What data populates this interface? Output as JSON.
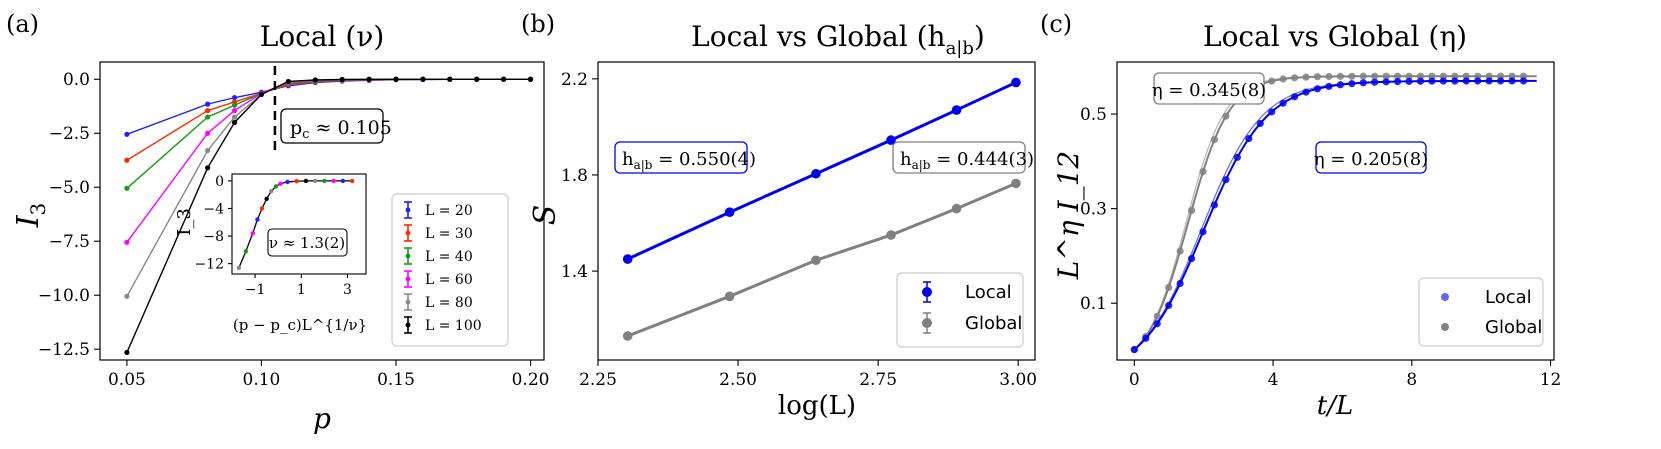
{
  "chart_data": [
    {
      "panel": "(a)",
      "type": "line",
      "title": "Local (ν)",
      "xlabel": "p",
      "ylabel": "I",
      "ylabel_sub": "3",
      "xlim": [
        0.04,
        0.205
      ],
      "ylim": [
        -13.0,
        0.8
      ],
      "xticks": [
        0.05,
        0.1,
        0.15,
        0.2
      ],
      "xtick_labels": [
        "0.05",
        "0.10",
        "0.15",
        "0.20"
      ],
      "yticks": [
        0.0,
        -2.5,
        -5.0,
        -7.5,
        -10.0,
        -12.5
      ],
      "ytick_labels": [
        "0.0",
        "−2.5",
        "−5.0",
        "−7.5",
        "−10.0",
        "−12.5"
      ],
      "critical_x": 0.105,
      "annotation": "p_c ≈ 0.105",
      "annotation_main": "p",
      "annotation_sub": "c",
      "annotation_rest": " ≈ 0.105",
      "x": [
        0.05,
        0.08,
        0.09,
        0.1,
        0.11,
        0.12,
        0.13,
        0.14,
        0.15,
        0.16,
        0.17,
        0.18,
        0.19,
        0.2
      ],
      "series": [
        {
          "name": "L = 20",
          "color": "#1f1fff",
          "values": [
            -2.55,
            -1.15,
            -0.85,
            -0.6,
            -0.3,
            -0.15,
            -0.08,
            -0.05,
            -0.02,
            -0.01,
            0,
            0,
            0,
            0
          ]
        },
        {
          "name": "L = 30",
          "color": "#ff2a00",
          "values": [
            -3.75,
            -1.45,
            -1.05,
            -0.65,
            -0.25,
            -0.12,
            -0.06,
            -0.03,
            -0.01,
            0,
            0,
            0,
            0,
            0
          ]
        },
        {
          "name": "L = 40",
          "color": "#1a9a1a",
          "values": [
            -5.05,
            -1.75,
            -1.2,
            -0.65,
            -0.2,
            -0.1,
            -0.05,
            -0.02,
            -0.01,
            0,
            0,
            0,
            0,
            0
          ]
        },
        {
          "name": "L = 60",
          "color": "#ff00ff",
          "values": [
            -7.55,
            -2.5,
            -1.45,
            -0.65,
            -0.15,
            -0.06,
            -0.03,
            -0.01,
            0,
            0,
            0,
            0,
            0,
            0
          ]
        },
        {
          "name": "L = 80",
          "color": "#888888",
          "values": [
            -10.05,
            -3.3,
            -1.75,
            -0.7,
            -0.12,
            -0.04,
            -0.02,
            0,
            0,
            0,
            0,
            0,
            0,
            0
          ]
        },
        {
          "name": "L = 100",
          "color": "#000000",
          "values": [
            -12.65,
            -4.1,
            -2.0,
            -0.7,
            -0.1,
            -0.03,
            -0.01,
            0,
            0,
            0,
            0,
            0,
            0,
            0
          ]
        }
      ],
      "inset": {
        "type": "scatter",
        "xlabel": "(p − p_c)L^{1/ν}",
        "ylabel": "I_3",
        "xlim": [
          -2.0,
          3.8
        ],
        "ylim": [
          -13.5,
          1.0
        ],
        "xticks": [
          -1,
          1,
          3
        ],
        "xtick_labels": [
          "−1",
          "1",
          "3"
        ],
        "yticks": [
          0,
          -4,
          -8,
          -12
        ],
        "ytick_labels": [
          "0",
          "−4",
          "−8",
          "−12"
        ],
        "annotation": "ν ≈ 1.3(2)",
        "x": [
          -1.7,
          -1.4,
          -1.1,
          -0.9,
          -0.7,
          -0.5,
          -0.3,
          -0.1,
          0.1,
          0.4,
          0.8,
          1.2,
          1.6,
          2.0,
          2.4,
          2.8,
          3.2
        ],
        "y": [
          -12.6,
          -10.2,
          -7.6,
          -5.6,
          -4.0,
          -2.6,
          -1.5,
          -0.8,
          -0.4,
          -0.15,
          -0.05,
          0,
          0,
          0,
          0,
          0,
          0
        ]
      },
      "legend_position": "lower-right"
    },
    {
      "panel": "(b)",
      "type": "line",
      "title": "Local vs Global (h_{a|b})",
      "title_main": "Local vs Global (h",
      "title_sub": "a|b",
      "title_end": ")",
      "xlabel": "log(L)",
      "ylabel": "S",
      "xlim": [
        2.25,
        3.03
      ],
      "ylim": [
        1.03,
        2.27
      ],
      "xticks": [
        2.25,
        2.5,
        2.75,
        3.0
      ],
      "xtick_labels": [
        "2.25",
        "2.50",
        "2.75",
        "3.00"
      ],
      "yticks": [
        1.4,
        1.8,
        2.2
      ],
      "ytick_labels": [
        "1.4",
        "1.8",
        "2.2"
      ],
      "x": [
        2.303,
        2.485,
        2.639,
        2.773,
        2.89,
        2.996
      ],
      "series": [
        {
          "name": "Local",
          "color": "#0000ee",
          "values": [
            1.45,
            1.645,
            1.805,
            1.945,
            2.07,
            2.185
          ],
          "fit_label": "h_{a|b} = 0.550(4)",
          "fit_rest": " = 0.550(4)"
        },
        {
          "name": "Global",
          "color": "#808080",
          "values": [
            1.13,
            1.295,
            1.445,
            1.55,
            1.66,
            1.765
          ],
          "fit_label": "h_{a|b} = 0.444(3)",
          "fit_rest": " = 0.444(3)"
        }
      ],
      "fit_main": "h",
      "fit_sub": "a|b",
      "legend_position": "lower-right"
    },
    {
      "panel": "(c)",
      "type": "scatter",
      "title": "Local vs Global (η)",
      "xlabel": "t/L",
      "ylabel": "L^η I_12",
      "xlim": [
        -0.5,
        12.1
      ],
      "ylim": [
        -0.02,
        0.61
      ],
      "xticks": [
        0,
        4,
        8,
        12
      ],
      "xtick_labels": [
        "0",
        "4",
        "8",
        "12"
      ],
      "yticks": [
        0.1,
        0.3,
        0.5
      ],
      "ytick_labels": [
        "0.1",
        "0.3",
        "0.5"
      ],
      "series": [
        {
          "name": "Local",
          "color": "#0000ee",
          "fit_label": "η = 0.205(8)",
          "plateau": 0.57,
          "t0": 2.0,
          "tau": 2.0
        },
        {
          "name": "Global",
          "color": "#808080",
          "fit_label": "η = 0.345(8)",
          "plateau": 0.58,
          "t0": 1.55,
          "tau": 1.3
        }
      ],
      "legend_position": "lower-right"
    }
  ]
}
